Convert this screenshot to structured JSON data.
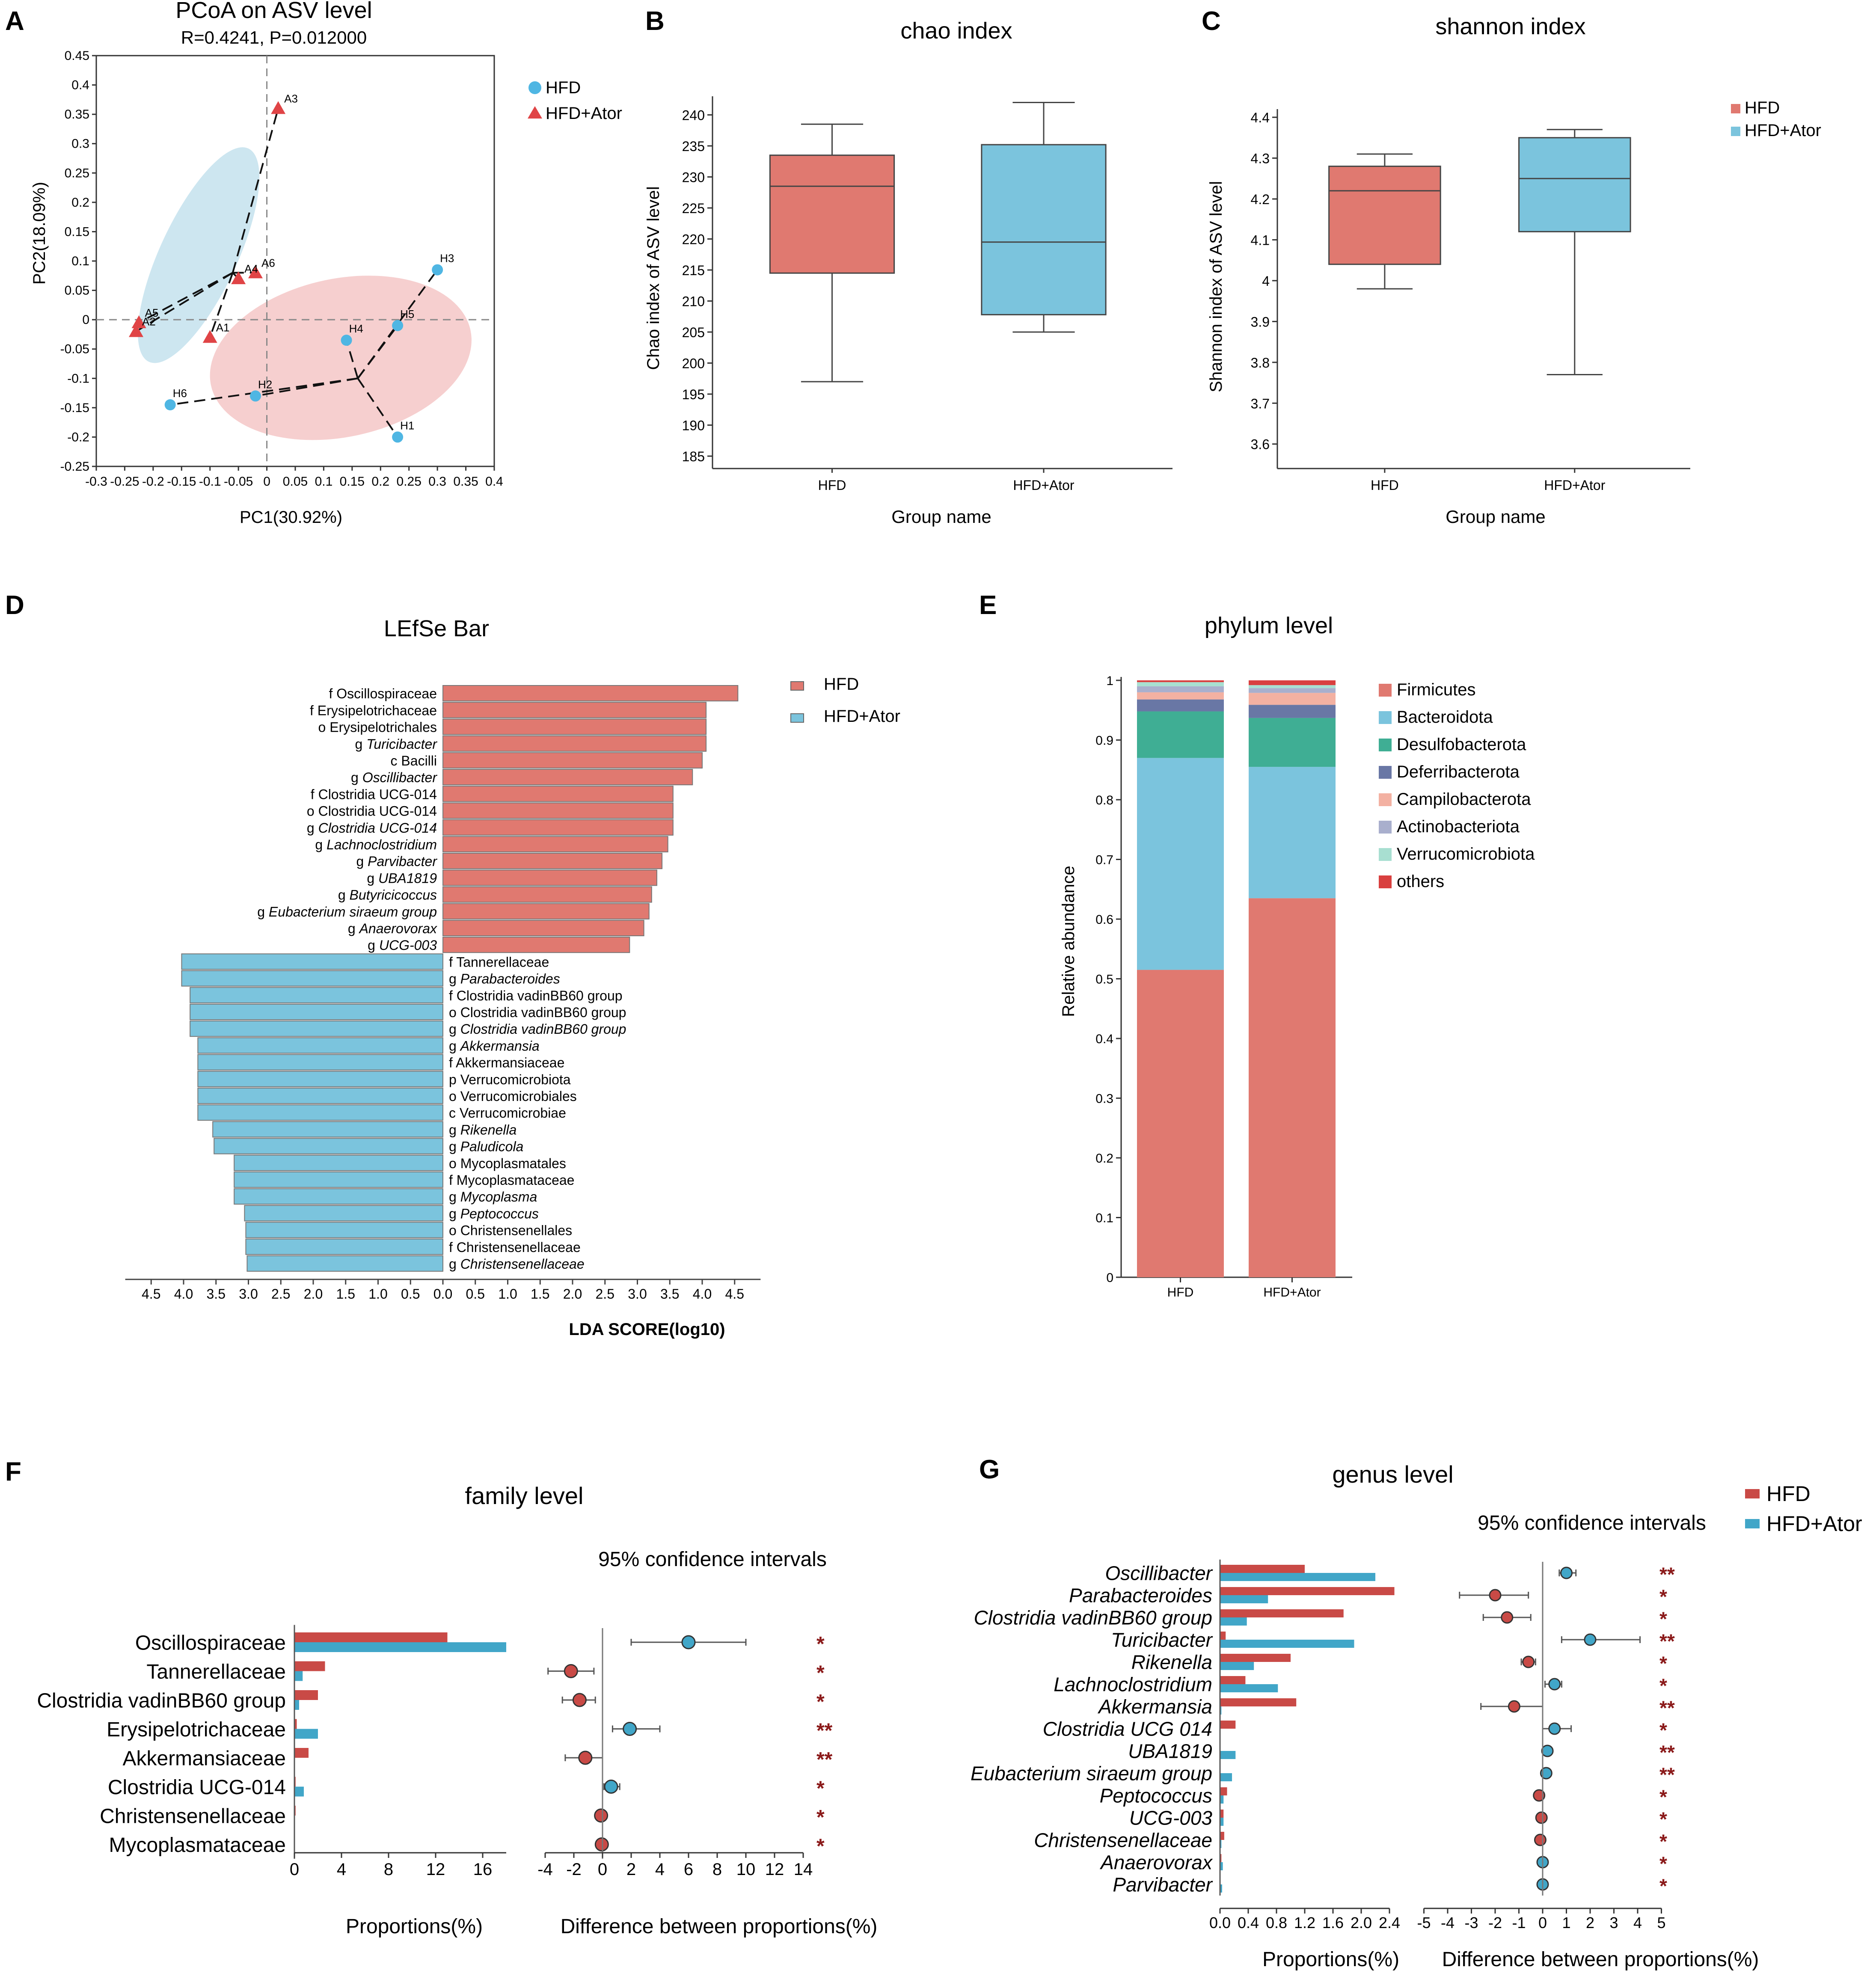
{
  "colors": {
    "hfd": "#E07970",
    "ator": "#7BC4DD",
    "hfd_dark": "#C94A46",
    "ator_dark": "#41A6C8",
    "sig": "#8B1A1A",
    "pcoa_ell_a": "#CDE6F0",
    "pcoa_ell_h": "#F6CFCF",
    "dot_blue": "#4FB6E3",
    "tri_red": "#E04446"
  },
  "panels": {
    "a": "A",
    "b": "B",
    "c": "C",
    "d": "D",
    "e": "E",
    "f": "F",
    "g": "G"
  },
  "pcoa": {
    "title": "PCoA on ASV level",
    "subtitle": "R=0.4241, P=0.012000",
    "xlabel": "PC1(30.92%)",
    "ylabel": "PC2(18.09%)",
    "x_ticks": [
      "-0.3",
      "-0.25",
      "-0.2",
      "-0.15",
      "-0.1",
      "-0.05",
      "0",
      "0.05",
      "0.1",
      "0.15",
      "0.2",
      "0.25",
      "0.3",
      "0.35",
      "0.4"
    ],
    "y_ticks": [
      "0.45",
      "0.4",
      "0.35",
      "0.3",
      "0.25",
      "0.2",
      "0.15",
      "0.1",
      "0.05",
      "0",
      "-0.05",
      "-0.1",
      "-0.15",
      "-0.2",
      "-0.25"
    ],
    "legend": [
      "HFD",
      "HFD+Ator"
    ],
    "points_ator": [
      {
        "label": "A3",
        "x": 0.02,
        "y": 0.36
      },
      {
        "label": "A6",
        "x": -0.02,
        "y": 0.08
      },
      {
        "label": "A4",
        "x": -0.05,
        "y": 0.07
      },
      {
        "label": "A5",
        "x": -0.225,
        "y": -0.005
      },
      {
        "label": "A2",
        "x": -0.23,
        "y": -0.02
      },
      {
        "label": "A1",
        "x": -0.1,
        "y": -0.03
      }
    ],
    "points_hfd": [
      {
        "label": "H3",
        "x": 0.3,
        "y": 0.085
      },
      {
        "label": "H5",
        "x": 0.23,
        "y": -0.01
      },
      {
        "label": "H4",
        "x": 0.14,
        "y": -0.035
      },
      {
        "label": "H2",
        "x": -0.02,
        "y": -0.13
      },
      {
        "label": "H6",
        "x": -0.17,
        "y": -0.145
      },
      {
        "label": "H1",
        "x": 0.23,
        "y": -0.2
      }
    ]
  },
  "chao": {
    "title": "chao index",
    "ylabel": "Chao index of ASV level",
    "xlabel": "Group name",
    "y_ticks": [
      "185",
      "190",
      "195",
      "200",
      "205",
      "210",
      "215",
      "220",
      "225",
      "230",
      "235",
      "240"
    ],
    "groups": [
      "HFD",
      "HFD+Ator"
    ],
    "boxes": [
      {
        "min": 197,
        "q1": 214.5,
        "median": 228.5,
        "q3": 233.5,
        "max": 238.5
      },
      {
        "min": 205,
        "q1": 207.8,
        "median": 219.5,
        "q3": 235.2,
        "max": 242
      }
    ]
  },
  "shannon": {
    "title": "shannon index",
    "ylabel": "Shannon index of ASV level",
    "xlabel": "Group name",
    "y_ticks": [
      "3.6",
      "3.7",
      "3.8",
      "3.9",
      "4",
      "4.1",
      "4.2",
      "4.3",
      "4.4"
    ],
    "groups": [
      "HFD",
      "HFD+Ator"
    ],
    "legend": [
      "HFD",
      "HFD+Ator"
    ],
    "boxes": [
      {
        "min": 3.98,
        "q1": 4.04,
        "median": 4.22,
        "q3": 4.28,
        "max": 4.31
      },
      {
        "min": 3.77,
        "q1": 4.12,
        "median": 4.25,
        "q3": 4.35,
        "max": 4.37
      }
    ]
  },
  "lefse": {
    "title": "LEfSe Bar",
    "xlabel": "LDA SCORE(log10)",
    "x_ticks": [
      "4.5",
      "4.0",
      "3.5",
      "3.0",
      "2.5",
      "2.0",
      "1.5",
      "1.0",
      "0.5",
      "0.0",
      "0.5",
      "1.0",
      "1.5",
      "2.0",
      "2.5",
      "3.0",
      "3.5",
      "4.0",
      "4.5"
    ],
    "legend": [
      "HFD",
      "HFD+Ator"
    ],
    "hfd": [
      {
        "p": "f",
        "n": "Oscillospiraceae",
        "v": 4.55,
        "it": false
      },
      {
        "p": "f",
        "n": "Erysipelotrichaceae",
        "v": 4.06,
        "it": false
      },
      {
        "p": "o",
        "n": "Erysipelotrichales",
        "v": 4.06,
        "it": false
      },
      {
        "p": "g",
        "n": "Turicibacter",
        "v": 4.06,
        "it": true
      },
      {
        "p": "c",
        "n": "Bacilli",
        "v": 4.0,
        "it": false
      },
      {
        "p": "g",
        "n": "Oscillibacter",
        "v": 3.85,
        "it": true
      },
      {
        "p": "f",
        "n": "Clostridia UCG-014",
        "v": 3.55,
        "it": false
      },
      {
        "p": "o",
        "n": "Clostridia UCG-014",
        "v": 3.55,
        "it": false
      },
      {
        "p": "g",
        "n": "Clostridia UCG-014",
        "v": 3.55,
        "it": true
      },
      {
        "p": "g",
        "n": "Lachnoclostridium",
        "v": 3.47,
        "it": true
      },
      {
        "p": "g",
        "n": "Parvibacter",
        "v": 3.38,
        "it": true
      },
      {
        "p": "g",
        "n": "UBA1819",
        "v": 3.3,
        "it": true
      },
      {
        "p": "g",
        "n": "Butyricicoccus",
        "v": 3.22,
        "it": true
      },
      {
        "p": "g",
        "n": "Eubacterium siraeum group",
        "v": 3.18,
        "it": true
      },
      {
        "p": "g",
        "n": "Anaerovorax",
        "v": 3.1,
        "it": true
      },
      {
        "p": "g",
        "n": "UCG-003",
        "v": 2.88,
        "it": true
      }
    ],
    "ator": [
      {
        "p": "f",
        "n": "Tannerellaceae",
        "v": 4.03,
        "it": false
      },
      {
        "p": "g",
        "n": "Parabacteroides",
        "v": 4.03,
        "it": true
      },
      {
        "p": "f",
        "n": "Clostridia vadinBB60 group",
        "v": 3.9,
        "it": false
      },
      {
        "p": "o",
        "n": "Clostridia vadinBB60 group",
        "v": 3.9,
        "it": false
      },
      {
        "p": "g",
        "n": "Clostridia vadinBB60 group",
        "v": 3.9,
        "it": true
      },
      {
        "p": "g",
        "n": "Akkermansia",
        "v": 3.78,
        "it": true
      },
      {
        "p": "f",
        "n": "Akkermansiaceae",
        "v": 3.78,
        "it": false
      },
      {
        "p": "p",
        "n": "Verrucomicrobiota",
        "v": 3.78,
        "it": false
      },
      {
        "p": "o",
        "n": "Verrucomicrobiales",
        "v": 3.78,
        "it": false
      },
      {
        "p": "c",
        "n": "Verrucomicrobiae",
        "v": 3.78,
        "it": false
      },
      {
        "p": "g",
        "n": "Rikenella",
        "v": 3.55,
        "it": true
      },
      {
        "p": "g",
        "n": "Paludicola",
        "v": 3.53,
        "it": true
      },
      {
        "p": "o",
        "n": "Mycoplasmatales",
        "v": 3.22,
        "it": false
      },
      {
        "p": "f",
        "n": "Mycoplasmataceae",
        "v": 3.22,
        "it": false
      },
      {
        "p": "g",
        "n": "Mycoplasma",
        "v": 3.22,
        "it": true
      },
      {
        "p": "g",
        "n": "Peptococcus",
        "v": 3.06,
        "it": true
      },
      {
        "p": "o",
        "n": "Christensenellales",
        "v": 3.04,
        "it": false
      },
      {
        "p": "f",
        "n": "Christensenellaceae",
        "v": 3.04,
        "it": false
      },
      {
        "p": "g",
        "n": "Christensenellaceae",
        "v": 3.02,
        "it": true
      }
    ]
  },
  "phylum": {
    "title": "phylum level",
    "ylabel": "Relative abundance",
    "y_ticks": [
      "0",
      "0.1",
      "0.2",
      "0.3",
      "0.4",
      "0.5",
      "0.6",
      "0.7",
      "0.8",
      "0.9",
      "1"
    ],
    "groups": [
      "HFD",
      "HFD+Ator"
    ],
    "series": [
      {
        "name": "Firmicutes",
        "color": "#E07970",
        "values": [
          0.515,
          0.635
        ]
      },
      {
        "name": "Bacteroidota",
        "color": "#7BC4DD",
        "values": [
          0.355,
          0.22
        ]
      },
      {
        "name": "Desulfobacterota",
        "color": "#3FAE94",
        "values": [
          0.078,
          0.082
        ]
      },
      {
        "name": "Deferribacterota",
        "color": "#6977A5",
        "values": [
          0.02,
          0.022
        ]
      },
      {
        "name": "Campilobacterota",
        "color": "#F3B1A2",
        "values": [
          0.012,
          0.02
        ]
      },
      {
        "name": "Actinobacteriota",
        "color": "#A9AFCD",
        "values": [
          0.01,
          0.008
        ]
      },
      {
        "name": "Verrucomicrobiota",
        "color": "#A8DFD1",
        "values": [
          0.007,
          0.005
        ]
      },
      {
        "name": "others",
        "color": "#D9403F",
        "values": [
          0.003,
          0.008
        ]
      }
    ]
  },
  "family": {
    "title": "family level",
    "ci_label": "95% confidence intervals",
    "xlabel_left": "Proportions(%)",
    "xlabel_right": "Difference between proportions(%)",
    "left_ticks": [
      "0",
      "4",
      "8",
      "12",
      "16"
    ],
    "right_ticks": [
      "-4",
      "-2",
      "0",
      "2",
      "4",
      "6",
      "8",
      "10",
      "12",
      "14"
    ],
    "rows": [
      {
        "name": "Oscillospiraceae",
        "hfd": 13.0,
        "ator": 18.0,
        "diff": 6.0,
        "lo": 2.0,
        "hi": 10.0,
        "sig": "*"
      },
      {
        "name": "Tannerellaceae",
        "hfd": 2.6,
        "ator": 0.7,
        "diff": -2.2,
        "lo": -3.8,
        "hi": -0.6,
        "sig": "*"
      },
      {
        "name": "Clostridia vadinBB60 group",
        "hfd": 2.0,
        "ator": 0.4,
        "diff": -1.6,
        "lo": -2.8,
        "hi": -0.5,
        "sig": "*"
      },
      {
        "name": "Erysipelotrichaceae",
        "hfd": 0.2,
        "ator": 2.0,
        "diff": 1.9,
        "lo": 0.7,
        "hi": 4.0,
        "sig": "**"
      },
      {
        "name": "Akkermansiaceae",
        "hfd": 1.2,
        "ator": 0.05,
        "diff": -1.2,
        "lo": -2.6,
        "hi": 0.0,
        "sig": "**"
      },
      {
        "name": "Clostridia UCG-014",
        "hfd": 0.1,
        "ator": 0.8,
        "diff": 0.6,
        "lo": 0.1,
        "hi": 1.2,
        "sig": "*"
      },
      {
        "name": "Christensenellaceae",
        "hfd": 0.1,
        "ator": 0.02,
        "diff": -0.1,
        "lo": -0.3,
        "hi": 0.1,
        "sig": "*"
      },
      {
        "name": "Mycoplasmataceae",
        "hfd": 0.05,
        "ator": 0.0,
        "diff": -0.05,
        "lo": -0.2,
        "hi": 0.1,
        "sig": "*"
      }
    ]
  },
  "genus": {
    "title": "genus level",
    "ci_label": "95% confidence intervals",
    "legend": [
      "HFD",
      "HFD+Ator"
    ],
    "xlabel_left": "Proportions(%)",
    "xlabel_right": "Difference between proportions(%)",
    "left_ticks": [
      "0.0",
      "0.4",
      "0.8",
      "1.2",
      "1.6",
      "2.0",
      "2.4"
    ],
    "right_ticks": [
      "-5",
      "-4",
      "-3",
      "-2",
      "-1",
      "0",
      "1",
      "2",
      "3",
      "4",
      "5"
    ],
    "rows": [
      {
        "name": "Oscillibacter",
        "hfd": 1.2,
        "ator": 2.2,
        "diff": 1.0,
        "lo": 0.7,
        "hi": 1.4,
        "sig": "**"
      },
      {
        "name": "Parabacteroides",
        "hfd": 2.47,
        "ator": 0.68,
        "diff": -2.0,
        "lo": -3.5,
        "hi": -0.6,
        "sig": "*"
      },
      {
        "name": "Clostridia vadinBB60 group",
        "hfd": 1.75,
        "ator": 0.38,
        "diff": -1.5,
        "lo": -2.5,
        "hi": -0.5,
        "sig": "*"
      },
      {
        "name": "Turicibacter",
        "hfd": 0.08,
        "ator": 1.9,
        "diff": 2.0,
        "lo": 0.8,
        "hi": 4.1,
        "sig": "**"
      },
      {
        "name": "Rikenella",
        "hfd": 1.0,
        "ator": 0.48,
        "diff": -0.6,
        "lo": -0.9,
        "hi": -0.3,
        "sig": "*"
      },
      {
        "name": "Lachnoclostridium",
        "hfd": 0.36,
        "ator": 0.82,
        "diff": 0.5,
        "lo": 0.1,
        "hi": 0.8,
        "sig": "*"
      },
      {
        "name": "Akkermansia",
        "hfd": 1.08,
        "ator": 0.02,
        "diff": -1.2,
        "lo": -2.6,
        "hi": 0.0,
        "sig": "**"
      },
      {
        "name": "Clostridia UCG 014",
        "hfd": 0.22,
        "ator": 0.0,
        "diff": 0.5,
        "lo": 0.0,
        "hi": 1.2,
        "sig": "*"
      },
      {
        "name": "UBA1819",
        "hfd": 0.0,
        "ator": 0.22,
        "diff": 0.2,
        "lo": 0.1,
        "hi": 0.3,
        "sig": "**"
      },
      {
        "name": "Eubacterium siraeum group",
        "hfd": 0.0,
        "ator": 0.17,
        "diff": 0.15,
        "lo": 0.05,
        "hi": 0.25,
        "sig": "**"
      },
      {
        "name": "Peptococcus",
        "hfd": 0.1,
        "ator": 0.05,
        "diff": -0.15,
        "lo": -0.25,
        "hi": -0.05,
        "sig": "*"
      },
      {
        "name": "UCG-003",
        "hfd": 0.05,
        "ator": 0.05,
        "diff": -0.05,
        "lo": -0.15,
        "hi": 0.05,
        "sig": "*"
      },
      {
        "name": "Christensenellaceae",
        "hfd": 0.06,
        "ator": 0.02,
        "diff": -0.1,
        "lo": -0.2,
        "hi": 0.0,
        "sig": "*"
      },
      {
        "name": "Anaerovorax",
        "hfd": 0.02,
        "ator": 0.04,
        "diff": 0.0,
        "lo": -0.1,
        "hi": 0.1,
        "sig": "*"
      },
      {
        "name": "Parvibacter",
        "hfd": 0.0,
        "ator": 0.03,
        "diff": 0.0,
        "lo": -0.1,
        "hi": 0.1,
        "sig": "*"
      }
    ]
  },
  "chart_data": [
    {
      "type": "scatter",
      "title": "PCoA on ASV level",
      "subtitle": "R=0.4241, P=0.012000",
      "xlabel": "PC1(30.92%)",
      "ylabel": "PC2(18.09%)",
      "xlim": [
        -0.3,
        0.4
      ],
      "ylim": [
        -0.25,
        0.45
      ]
    },
    {
      "type": "box",
      "title": "chao index",
      "xlabel": "Group name",
      "ylabel": "Chao index of ASV level",
      "ylim": [
        185,
        240
      ]
    },
    {
      "type": "box",
      "title": "shannon index",
      "xlabel": "Group name",
      "ylabel": "Shannon index of ASV level",
      "ylim": [
        3.6,
        4.4
      ]
    },
    {
      "type": "bar",
      "title": "LEfSe Bar",
      "xlabel": "LDA SCORE(log10)",
      "xlim": [
        -4.5,
        4.5
      ]
    },
    {
      "type": "bar",
      "title": "phylum level",
      "ylabel": "Relative abundance",
      "ylim": [
        0,
        1
      ]
    },
    {
      "type": "bar",
      "title": "family level"
    },
    {
      "type": "bar",
      "title": "genus level"
    }
  ]
}
